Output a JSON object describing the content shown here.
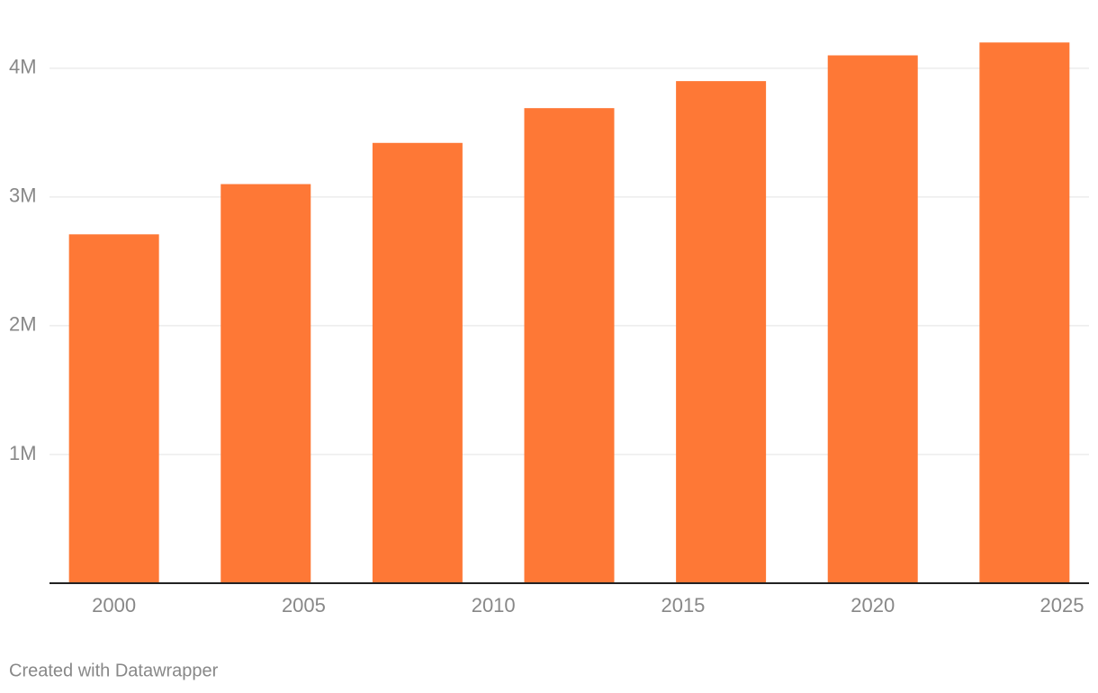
{
  "chart_data": {
    "type": "bar",
    "x": [
      2000,
      2004,
      2008,
      2012,
      2016,
      2020,
      2024
    ],
    "values": [
      2710000,
      3100000,
      3420000,
      3690000,
      3900000,
      4100000,
      4200000
    ],
    "color": "#fe7836",
    "xlim": [
      1998.3,
      2025.7
    ],
    "xticks": [
      2000,
      2005,
      2010,
      2015,
      2020,
      2025
    ],
    "ylim": [
      0,
      4530000
    ],
    "yticks": [
      {
        "value": 1000000,
        "label": "1M"
      },
      {
        "value": 2000000,
        "label": "2M"
      },
      {
        "value": 3000000,
        "label": "3M"
      },
      {
        "value": 4000000,
        "label": "4M"
      }
    ],
    "grid": true,
    "footer": "Created with Datawrapper"
  }
}
